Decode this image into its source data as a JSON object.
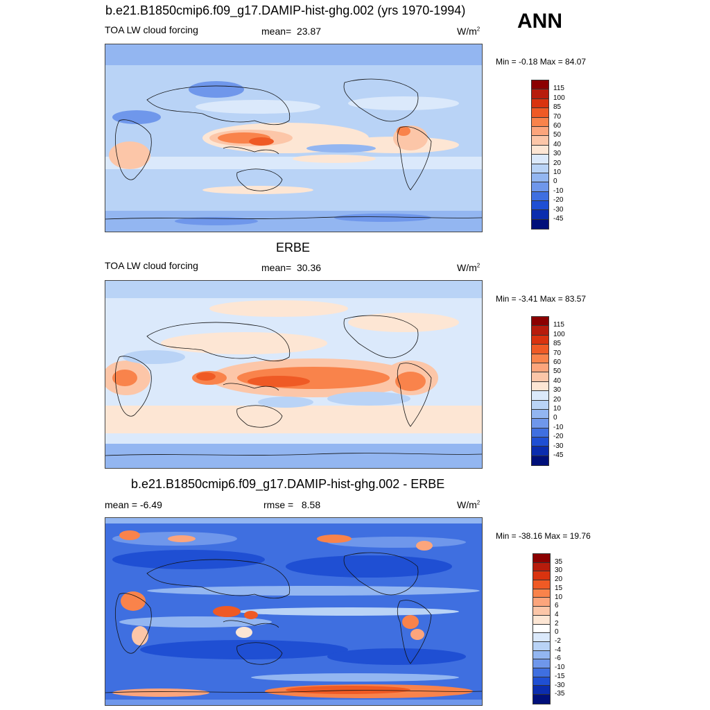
{
  "header": {
    "ann_label": "ANN"
  },
  "panels": [
    {
      "title": "b.e21.B1850cmip6.f09_g17.DAMIP-hist-ghg.002 (yrs 1970-1994)",
      "left_label": "TOA LW cloud forcing",
      "stat_label": "mean=",
      "stat_value": "23.87",
      "units": "W/m",
      "units_exp": "2",
      "min_max": "Min =  -0.18 Max =  84.07",
      "colorbar": {
        "labels": [
          "115",
          "100",
          "85",
          "70",
          "60",
          "50",
          "40",
          "30",
          "20",
          "10",
          "0",
          "-10",
          "-20",
          "-30",
          "-45"
        ],
        "colors": [
          "#8b0000",
          "#b71c0c",
          "#d9330f",
          "#ef5a25",
          "#f9834b",
          "#fca57c",
          "#fcc6a8",
          "#fde6d4",
          "#dbe9fb",
          "#b9d3f6",
          "#93b6f1",
          "#6f97eb",
          "#3f6fe0",
          "#1f4fd3",
          "#0b2dae",
          "#00107a"
        ]
      }
    },
    {
      "title": "ERBE",
      "left_label": "TOA LW cloud forcing",
      "stat_label": "mean=",
      "stat_value": "30.36",
      "units": "W/m",
      "units_exp": "2",
      "min_max": "Min =  -3.41 Max =  83.57",
      "colorbar": {
        "labels": [
          "115",
          "100",
          "85",
          "70",
          "60",
          "50",
          "40",
          "30",
          "20",
          "10",
          "0",
          "-10",
          "-20",
          "-30",
          "-45"
        ],
        "colors": [
          "#8b0000",
          "#b71c0c",
          "#d9330f",
          "#ef5a25",
          "#f9834b",
          "#fca57c",
          "#fcc6a8",
          "#fde6d4",
          "#dbe9fb",
          "#b9d3f6",
          "#93b6f1",
          "#6f97eb",
          "#3f6fe0",
          "#1f4fd3",
          "#0b2dae",
          "#00107a"
        ]
      }
    },
    {
      "title": "b.e21.B1850cmip6.f09_g17.DAMIP-hist-ghg.002 - ERBE",
      "left_label": "mean =  -6.49",
      "stat_label": "rmse =",
      "stat_value": "8.58",
      "units": "W/m",
      "units_exp": "2",
      "min_max": "Min = -38.16 Max =  19.76",
      "colorbar": {
        "labels": [
          "35",
          "30",
          "20",
          "15",
          "10",
          "6",
          "4",
          "2",
          "0",
          "-2",
          "-4",
          "-6",
          "-10",
          "-15",
          "-30",
          "-35"
        ],
        "colors": [
          "#8b0000",
          "#b71c0c",
          "#d9330f",
          "#ef5a25",
          "#f9834b",
          "#fca57c",
          "#fcc6a8",
          "#fde6d4",
          "#ffffff",
          "#dbe9fb",
          "#b9d3f6",
          "#93b6f1",
          "#6f97eb",
          "#3f6fe0",
          "#1f4fd3",
          "#0b2dae",
          "#00107a"
        ]
      }
    }
  ]
}
